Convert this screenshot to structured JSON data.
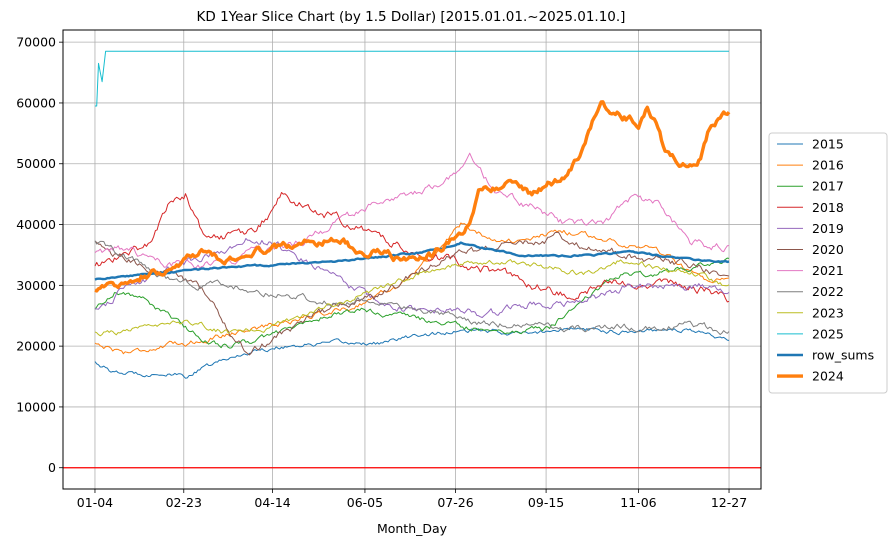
{
  "chart_data": {
    "type": "line",
    "title": "KD 1Year Slice Chart (by 1.5 Dollar) [2015.01.01.~2025.01.10.]",
    "xlabel": "Month_Day",
    "ylabel": "",
    "x_tick_labels": [
      "01-04",
      "02-23",
      "04-14",
      "06-05",
      "07-26",
      "09-15",
      "11-06",
      "12-27"
    ],
    "x_tick_days": [
      4,
      54,
      104,
      156,
      207,
      258,
      310,
      361
    ],
    "xlim": [
      -14,
      379
    ],
    "ylim": [
      -3500,
      72000
    ],
    "y_ticks": [
      0,
      10000,
      20000,
      30000,
      40000,
      50000,
      60000,
      70000
    ],
    "grid": true,
    "legend_position": "center-right",
    "reference_line": {
      "y": 0,
      "color": "#ff0000"
    },
    "series": [
      {
        "name": "2015",
        "color": "#1f77b4",
        "width": 1,
        "noise": 400,
        "points": [
          [
            4,
            17500
          ],
          [
            15,
            15500
          ],
          [
            40,
            15500
          ],
          [
            55,
            15000
          ],
          [
            70,
            17000
          ],
          [
            90,
            19000
          ],
          [
            110,
            20000
          ],
          [
            140,
            20500
          ],
          [
            165,
            20500
          ],
          [
            190,
            22000
          ],
          [
            220,
            22500
          ],
          [
            250,
            22000
          ],
          [
            270,
            23000
          ],
          [
            290,
            22500
          ],
          [
            310,
            22500
          ],
          [
            330,
            23000
          ],
          [
            350,
            22000
          ],
          [
            361,
            21000
          ]
        ]
      },
      {
        "name": "2016",
        "color": "#ff7f0e",
        "width": 1,
        "noise": 500,
        "points": [
          [
            4,
            20500
          ],
          [
            20,
            19000
          ],
          [
            45,
            20000
          ],
          [
            65,
            21000
          ],
          [
            85,
            22500
          ],
          [
            105,
            23500
          ],
          [
            125,
            25000
          ],
          [
            150,
            26500
          ],
          [
            175,
            30000
          ],
          [
            195,
            35000
          ],
          [
            210,
            40000
          ],
          [
            225,
            38000
          ],
          [
            245,
            37000
          ],
          [
            265,
            39000
          ],
          [
            285,
            38000
          ],
          [
            300,
            37000
          ],
          [
            320,
            36000
          ],
          [
            335,
            33000
          ],
          [
            350,
            30000
          ],
          [
            361,
            31000
          ]
        ]
      },
      {
        "name": "2017",
        "color": "#2ca02c",
        "width": 1,
        "noise": 500,
        "points": [
          [
            4,
            26000
          ],
          [
            15,
            29000
          ],
          [
            30,
            28000
          ],
          [
            50,
            24000
          ],
          [
            65,
            21000
          ],
          [
            80,
            20000
          ],
          [
            95,
            21000
          ],
          [
            115,
            23000
          ],
          [
            135,
            25000
          ],
          [
            155,
            26000
          ],
          [
            175,
            25000
          ],
          [
            195,
            24000
          ],
          [
            215,
            23000
          ],
          [
            240,
            22500
          ],
          [
            260,
            23000
          ],
          [
            280,
            28000
          ],
          [
            300,
            32000
          ],
          [
            320,
            32000
          ],
          [
            340,
            33000
          ],
          [
            361,
            34000
          ]
        ]
      },
      {
        "name": "2018",
        "color": "#d62728",
        "width": 1,
        "noise": 800,
        "points": [
          [
            4,
            33000
          ],
          [
            20,
            35000
          ],
          [
            35,
            37000
          ],
          [
            45,
            43000
          ],
          [
            55,
            45000
          ],
          [
            65,
            38000
          ],
          [
            80,
            38000
          ],
          [
            95,
            39000
          ],
          [
            110,
            45000
          ],
          [
            130,
            42000
          ],
          [
            150,
            40000
          ],
          [
            170,
            37000
          ],
          [
            190,
            35000
          ],
          [
            210,
            34000
          ],
          [
            230,
            32000
          ],
          [
            250,
            30000
          ],
          [
            275,
            28000
          ],
          [
            300,
            31000
          ],
          [
            330,
            30000
          ],
          [
            350,
            29000
          ],
          [
            361,
            27500
          ]
        ]
      },
      {
        "name": "2019",
        "color": "#9467bd",
        "width": 1,
        "noise": 700,
        "points": [
          [
            4,
            26000
          ],
          [
            20,
            29000
          ],
          [
            40,
            32000
          ],
          [
            60,
            34000
          ],
          [
            80,
            36000
          ],
          [
            95,
            38000
          ],
          [
            110,
            36000
          ],
          [
            130,
            33000
          ],
          [
            145,
            30000
          ],
          [
            165,
            27000
          ],
          [
            185,
            26000
          ],
          [
            205,
            26000
          ],
          [
            225,
            25000
          ],
          [
            245,
            27000
          ],
          [
            265,
            27000
          ],
          [
            285,
            28000
          ],
          [
            305,
            30000
          ],
          [
            325,
            30000
          ],
          [
            345,
            30000
          ],
          [
            361,
            29000
          ]
        ]
      },
      {
        "name": "2020",
        "color": "#8c564b",
        "width": 1,
        "noise": 700,
        "points": [
          [
            4,
            37000
          ],
          [
            15,
            35000
          ],
          [
            30,
            33000
          ],
          [
            50,
            32000
          ],
          [
            65,
            29000
          ],
          [
            80,
            22000
          ],
          [
            90,
            19000
          ],
          [
            105,
            21000
          ],
          [
            125,
            25000
          ],
          [
            145,
            27000
          ],
          [
            165,
            28000
          ],
          [
            185,
            32000
          ],
          [
            205,
            35000
          ],
          [
            225,
            36000
          ],
          [
            245,
            37000
          ],
          [
            265,
            38000
          ],
          [
            285,
            36000
          ],
          [
            305,
            35000
          ],
          [
            325,
            34000
          ],
          [
            345,
            33000
          ],
          [
            361,
            31000
          ]
        ]
      },
      {
        "name": "2021",
        "color": "#e377c2",
        "width": 1,
        "noise": 700,
        "points": [
          [
            4,
            35000
          ],
          [
            20,
            36000
          ],
          [
            40,
            34000
          ],
          [
            60,
            33000
          ],
          [
            80,
            34000
          ],
          [
            100,
            36000
          ],
          [
            120,
            37000
          ],
          [
            140,
            40000
          ],
          [
            160,
            43000
          ],
          [
            175,
            44000
          ],
          [
            190,
            46000
          ],
          [
            205,
            48000
          ],
          [
            215,
            51000
          ],
          [
            230,
            45000
          ],
          [
            250,
            43000
          ],
          [
            270,
            40000
          ],
          [
            290,
            40000
          ],
          [
            305,
            44000
          ],
          [
            320,
            44000
          ],
          [
            340,
            37000
          ],
          [
            361,
            36000
          ]
        ]
      },
      {
        "name": "2022",
        "color": "#7f7f7f",
        "width": 1,
        "noise": 600,
        "points": [
          [
            4,
            37000
          ],
          [
            20,
            35000
          ],
          [
            40,
            32000
          ],
          [
            60,
            30000
          ],
          [
            80,
            30000
          ],
          [
            100,
            29000
          ],
          [
            120,
            28000
          ],
          [
            140,
            27000
          ],
          [
            160,
            28000
          ],
          [
            180,
            26000
          ],
          [
            200,
            25000
          ],
          [
            220,
            24000
          ],
          [
            240,
            23500
          ],
          [
            260,
            23000
          ],
          [
            280,
            23000
          ],
          [
            300,
            23000
          ],
          [
            320,
            23000
          ],
          [
            340,
            23500
          ],
          [
            361,
            22500
          ]
        ]
      },
      {
        "name": "2023",
        "color": "#bcbd22",
        "width": 1,
        "noise": 500,
        "points": [
          [
            4,
            22000
          ],
          [
            20,
            22500
          ],
          [
            40,
            23000
          ],
          [
            60,
            24000
          ],
          [
            80,
            22000
          ],
          [
            100,
            23000
          ],
          [
            120,
            25000
          ],
          [
            140,
            27000
          ],
          [
            160,
            29000
          ],
          [
            180,
            31000
          ],
          [
            200,
            33000
          ],
          [
            220,
            34000
          ],
          [
            240,
            34000
          ],
          [
            260,
            33000
          ],
          [
            280,
            32000
          ],
          [
            300,
            34000
          ],
          [
            320,
            33000
          ],
          [
            340,
            32000
          ],
          [
            361,
            30000
          ]
        ]
      },
      {
        "name": "2025",
        "color": "#17becf",
        "width": 1,
        "noise": 0,
        "points": [
          [
            4,
            59500
          ],
          [
            5,
            59500
          ],
          [
            6,
            66500
          ],
          [
            8,
            63500
          ],
          [
            10,
            68500
          ],
          [
            361,
            68500
          ]
        ]
      },
      {
        "name": "row_sums",
        "color": "#1f77b4",
        "width": 2.4,
        "noise": 150,
        "points": [
          [
            4,
            31000
          ],
          [
            20,
            31500
          ],
          [
            40,
            32000
          ],
          [
            60,
            32500
          ],
          [
            80,
            33000
          ],
          [
            100,
            33300
          ],
          [
            120,
            33600
          ],
          [
            140,
            34000
          ],
          [
            160,
            34500
          ],
          [
            180,
            35200
          ],
          [
            200,
            36000
          ],
          [
            210,
            37000
          ],
          [
            225,
            36000
          ],
          [
            245,
            35000
          ],
          [
            265,
            34800
          ],
          [
            285,
            35000
          ],
          [
            305,
            35500
          ],
          [
            325,
            34800
          ],
          [
            345,
            34000
          ],
          [
            361,
            33800
          ]
        ]
      },
      {
        "name": "2024",
        "color": "#ff7f0e",
        "width": 3.4,
        "noise": 700,
        "points": [
          [
            4,
            29500
          ],
          [
            15,
            30000
          ],
          [
            30,
            31500
          ],
          [
            45,
            32500
          ],
          [
            55,
            34000
          ],
          [
            65,
            36000
          ],
          [
            75,
            34000
          ],
          [
            85,
            35000
          ],
          [
            95,
            36000
          ],
          [
            110,
            36500
          ],
          [
            125,
            37000
          ],
          [
            140,
            38000
          ],
          [
            150,
            36000
          ],
          [
            160,
            35500
          ],
          [
            175,
            34500
          ],
          [
            185,
            34000
          ],
          [
            195,
            35000
          ],
          [
            205,
            37500
          ],
          [
            215,
            40000
          ],
          [
            220,
            46000
          ],
          [
            235,
            46500
          ],
          [
            250,
            45000
          ],
          [
            260,
            47000
          ],
          [
            270,
            47500
          ],
          [
            280,
            53000
          ],
          [
            285,
            58000
          ],
          [
            290,
            60000
          ],
          [
            300,
            58000
          ],
          [
            310,
            56500
          ],
          [
            315,
            60000
          ],
          [
            320,
            57000
          ],
          [
            325,
            52000
          ],
          [
            335,
            50000
          ],
          [
            345,
            51000
          ],
          [
            350,
            56000
          ],
          [
            355,
            57000
          ],
          [
            358,
            59000
          ],
          [
            361,
            58500
          ]
        ]
      }
    ]
  }
}
